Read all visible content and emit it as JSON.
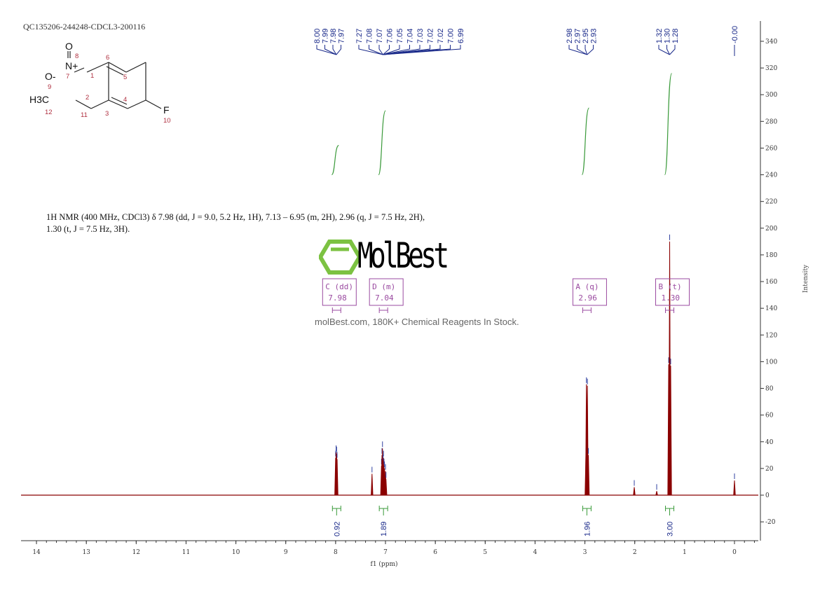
{
  "sample_id": "QC135206-244248-CDCL3-200116",
  "structure": {
    "atoms": [
      "O",
      "N+",
      "O-",
      "H3C",
      "F"
    ],
    "numbers": [
      "1",
      "2",
      "3",
      "4",
      "5",
      "6",
      "7",
      "8",
      "9",
      "10",
      "11",
      "12"
    ]
  },
  "description": "1H NMR (400 MHz, CDCl3) δ 7.98 (dd, J = 9.0, 5.2 Hz, 1H), 7.13 – 6.95 (m, 2H), 2.96 (q, J = 7.5 Hz, 2H), 1.30 (t, J = 7.5 Hz, 3H).",
  "watermark": {
    "brand": "MolBest",
    "tagline": "molBest.com, 180K+ Chemical Reagents In Stock."
  },
  "chart_data": {
    "type": "line",
    "xlabel": "f1 (ppm)",
    "ylabel": "Intensity",
    "xlim": [
      14.3,
      -0.45
    ],
    "ylim": [
      -35,
      350
    ],
    "x_ticks": [
      14,
      13,
      12,
      11,
      10,
      9,
      8,
      7,
      6,
      5,
      4,
      3,
      2,
      1,
      0
    ],
    "y_ticks": [
      -20,
      0,
      20,
      40,
      60,
      80,
      100,
      120,
      140,
      160,
      180,
      200,
      220,
      240,
      260,
      280,
      300,
      320,
      340
    ],
    "peaks": [
      {
        "ppm": 8.0,
        "height": 28
      },
      {
        "ppm": 7.99,
        "height": 32
      },
      {
        "ppm": 7.98,
        "height": 31
      },
      {
        "ppm": 7.97,
        "height": 27
      },
      {
        "ppm": 7.27,
        "height": 16
      },
      {
        "ppm": 7.08,
        "height": 22
      },
      {
        "ppm": 7.07,
        "height": 30
      },
      {
        "ppm": 7.06,
        "height": 35
      },
      {
        "ppm": 7.05,
        "height": 25
      },
      {
        "ppm": 7.04,
        "height": 28
      },
      {
        "ppm": 7.03,
        "height": 22
      },
      {
        "ppm": 7.02,
        "height": 20
      },
      {
        "ppm": 7.0,
        "height": 18
      },
      {
        "ppm": 6.99,
        "height": 12
      },
      {
        "ppm": 2.98,
        "height": 30
      },
      {
        "ppm": 2.97,
        "height": 83
      },
      {
        "ppm": 2.95,
        "height": 82
      },
      {
        "ppm": 2.93,
        "height": 30
      },
      {
        "ppm": 2.01,
        "height": 6
      },
      {
        "ppm": 1.56,
        "height": 3
      },
      {
        "ppm": 1.32,
        "height": 98
      },
      {
        "ppm": 1.3,
        "height": 190
      },
      {
        "ppm": 1.28,
        "height": 97
      },
      {
        "ppm": 0.0,
        "height": 11
      }
    ],
    "peak_labels": [
      {
        "anchor": 7.985,
        "labels": [
          "8.00",
          "7.99",
          "7.98",
          "7.97"
        ]
      },
      {
        "anchor": 7.05,
        "labels": [
          "7.27",
          "7.08",
          "7.07",
          "7.06",
          "7.05",
          "7.04",
          "7.03",
          "7.02",
          "7.02",
          "7.00",
          "6.99"
        ]
      },
      {
        "anchor": 2.955,
        "labels": [
          "2.98",
          "2.97",
          "2.95",
          "2.93"
        ]
      },
      {
        "anchor": 1.3,
        "labels": [
          "1.32",
          "1.30",
          "1.28"
        ]
      },
      {
        "anchor": 0.0,
        "labels": [
          "-0.00"
        ]
      }
    ],
    "integrals": [
      {
        "ppm": 7.98,
        "value": "0.92",
        "curve": [
          240,
          262
        ]
      },
      {
        "ppm": 7.04,
        "value": "1.89",
        "curve": [
          240,
          288
        ]
      },
      {
        "ppm": 2.96,
        "value": "1.96",
        "curve": [
          240,
          290
        ]
      },
      {
        "ppm": 1.3,
        "value": "3.00",
        "curve": [
          240,
          316
        ]
      }
    ],
    "multiplets": [
      {
        "id": "C",
        "type": "(dd)",
        "shift": "7.98"
      },
      {
        "id": "D",
        "type": "(m)",
        "shift": "7.04"
      },
      {
        "id": "A",
        "type": "(q)",
        "shift": "2.96"
      },
      {
        "id": "B",
        "type": "(t)",
        "shift": "1.30"
      }
    ],
    "colors": {
      "spectrum": "#8b0000",
      "integral": "#3a9a3a",
      "labels": "#1a2a8a",
      "multiplet": "#9a4aa0"
    }
  }
}
